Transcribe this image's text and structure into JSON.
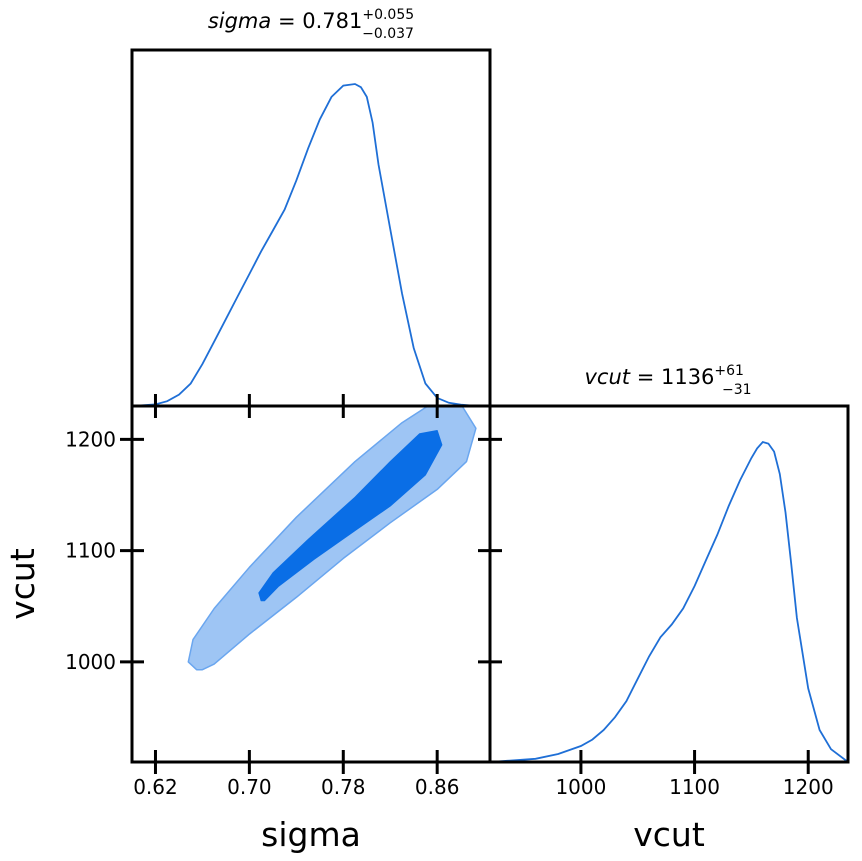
{
  "chart_data": [
    {
      "type": "line",
      "panel": "marginal-sigma",
      "title_param": "sigma",
      "title_value": "0.781",
      "title_plus": "+0.055",
      "title_minus": "−0.037",
      "xlim": [
        0.6,
        0.905
      ],
      "x": [
        0.6,
        0.62,
        0.63,
        0.64,
        0.65,
        0.66,
        0.67,
        0.68,
        0.69,
        0.7,
        0.71,
        0.72,
        0.73,
        0.74,
        0.75,
        0.76,
        0.77,
        0.78,
        0.79,
        0.795,
        0.8,
        0.805,
        0.81,
        0.82,
        0.83,
        0.84,
        0.85,
        0.86,
        0.87,
        0.88,
        0.89,
        0.905
      ],
      "y": [
        0.0,
        0.005,
        0.015,
        0.035,
        0.07,
        0.13,
        0.2,
        0.27,
        0.34,
        0.41,
        0.48,
        0.545,
        0.61,
        0.7,
        0.8,
        0.89,
        0.96,
        0.995,
        1.0,
        0.99,
        0.96,
        0.88,
        0.75,
        0.55,
        0.35,
        0.18,
        0.07,
        0.025,
        0.01,
        0.004,
        0.001,
        0.0
      ],
      "color": "#1f6fd6"
    },
    {
      "type": "line",
      "panel": "marginal-vcut",
      "title_param": "vcut",
      "title_value": "1136",
      "title_plus": "+61",
      "title_minus": "−31",
      "xlim": [
        920,
        1235
      ],
      "x": [
        920,
        960,
        980,
        1000,
        1010,
        1020,
        1030,
        1040,
        1050,
        1060,
        1070,
        1080,
        1090,
        1100,
        1110,
        1120,
        1130,
        1140,
        1150,
        1155,
        1160,
        1165,
        1170,
        1175,
        1180,
        1185,
        1190,
        1200,
        1210,
        1220,
        1235
      ],
      "y": [
        0.0,
        0.01,
        0.025,
        0.05,
        0.07,
        0.1,
        0.14,
        0.19,
        0.26,
        0.33,
        0.39,
        0.43,
        0.48,
        0.55,
        0.63,
        0.71,
        0.8,
        0.88,
        0.95,
        0.98,
        1.0,
        0.995,
        0.97,
        0.9,
        0.78,
        0.62,
        0.45,
        0.23,
        0.1,
        0.04,
        0.0
      ],
      "color": "#1f6fd6"
    },
    {
      "type": "contour",
      "panel": "joint-sigma-vcut",
      "xlabel": "sigma",
      "ylabel": "vcut",
      "xlim": [
        0.6,
        0.905
      ],
      "ylim": [
        910,
        1230
      ],
      "xticks": [
        0.62,
        0.7,
        0.78,
        0.86
      ],
      "xtick_labels": [
        "0.62",
        "0.70",
        "0.78",
        "0.86"
      ],
      "yticks": [
        1000,
        1100,
        1200
      ],
      "ytick_labels": [
        "1000",
        "1100",
        "1200"
      ],
      "levels": [
        {
          "name": "outer",
          "fill": "#9ec5f4",
          "stroke": "#6aa6ef",
          "points": [
            [
              0.655,
              993
            ],
            [
              0.648,
              1000
            ],
            [
              0.652,
              1020
            ],
            [
              0.67,
              1048
            ],
            [
              0.7,
              1085
            ],
            [
              0.74,
              1130
            ],
            [
              0.79,
              1180
            ],
            [
              0.83,
              1215
            ],
            [
              0.855,
              1232
            ],
            [
              0.88,
              1232
            ],
            [
              0.893,
              1210
            ],
            [
              0.885,
              1180
            ],
            [
              0.86,
              1155
            ],
            [
              0.82,
              1125
            ],
            [
              0.78,
              1093
            ],
            [
              0.74,
              1058
            ],
            [
              0.7,
              1025
            ],
            [
              0.67,
              998
            ],
            [
              0.66,
              993
            ]
          ]
        },
        {
          "name": "inner",
          "fill": "#0a6ee6",
          "stroke": "#0a6ee6",
          "points": [
            [
              0.71,
              1055
            ],
            [
              0.708,
              1062
            ],
            [
              0.72,
              1080
            ],
            [
              0.75,
              1110
            ],
            [
              0.79,
              1148
            ],
            [
              0.82,
              1180
            ],
            [
              0.845,
              1205
            ],
            [
              0.86,
              1208
            ],
            [
              0.864,
              1195
            ],
            [
              0.85,
              1168
            ],
            [
              0.82,
              1140
            ],
            [
              0.79,
              1118
            ],
            [
              0.755,
              1092
            ],
            [
              0.725,
              1068
            ],
            [
              0.713,
              1055
            ]
          ]
        }
      ]
    }
  ],
  "bottom_right_axis": {
    "xlabel": "vcut",
    "xticks": [
      1000,
      1100,
      1200
    ],
    "xtick_labels": [
      "1000",
      "1100",
      "1200"
    ]
  }
}
